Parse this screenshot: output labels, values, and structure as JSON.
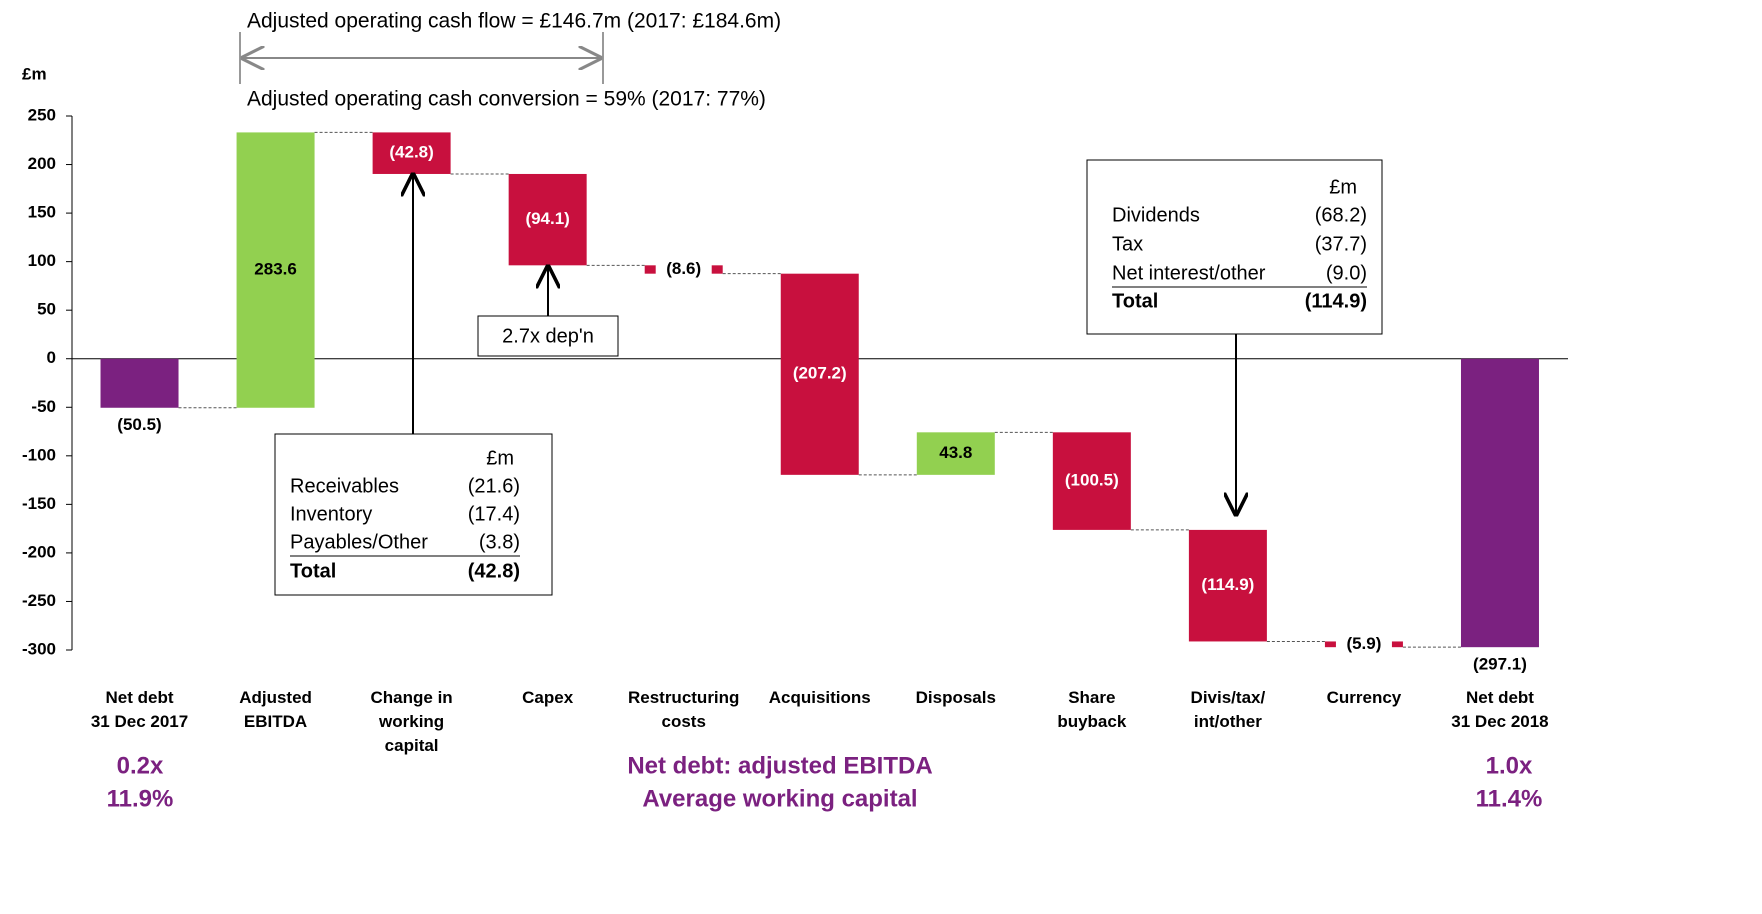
{
  "chart_data": {
    "type": "waterfall",
    "y_axis_label": "£m",
    "categories": [
      "Net debt\n31 Dec 2017",
      "Adjusted\nEBITDA",
      "Change in\nworking\ncapital",
      "Capex",
      "Restructuring\ncosts",
      "Acquisitions",
      "Disposals",
      "Share\nbuyback",
      "Divis/tax/\nint/other",
      "Currency",
      "Net debt\n31 Dec 2018"
    ],
    "values": [
      -50.5,
      283.6,
      -42.8,
      -94.1,
      -8.6,
      -207.2,
      43.8,
      -100.5,
      -114.9,
      -5.9,
      -297.1
    ],
    "value_labels": [
      "(50.5)",
      "283.6",
      "(42.8)",
      "(94.1)",
      "(8.6)",
      "(207.2)",
      "43.8",
      "(100.5)",
      "(114.9)",
      "(5.9)",
      "(297.1)"
    ],
    "colors": [
      "#7b2180",
      "#92d050",
      "#c8103e",
      "#c8103e",
      "#c8103e",
      "#c8103e",
      "#92d050",
      "#c8103e",
      "#c8103e",
      "#c8103e",
      "#7b2180"
    ],
    "totals": [
      10
    ],
    "ylim": [
      -300,
      250
    ],
    "yticks": [
      -300,
      -250,
      -200,
      -150,
      -100,
      -50,
      0,
      50,
      100,
      150,
      200,
      250
    ],
    "annotations": {
      "cash_flow": "Adjusted operating cash flow = £146.7m (2017: £184.6m)",
      "cash_conversion": "Adjusted operating cash conversion = 59% (2017: 77%)",
      "depreciation": "2.7x dep'n",
      "working_capital_table": {
        "unit": "£m",
        "rows": [
          [
            "Receivables",
            "(21.6)"
          ],
          [
            "Inventory",
            "(17.4)"
          ],
          [
            "Payables/Other",
            "(3.8)"
          ],
          [
            "Total",
            "(42.8)"
          ]
        ]
      },
      "divis_table": {
        "unit": "£m",
        "rows": [
          [
            "Dividends",
            "(68.2)"
          ],
          [
            "Tax",
            "(37.7)"
          ],
          [
            "Net interest/other",
            "(9.0)"
          ],
          [
            "Total",
            "(114.9)"
          ]
        ]
      },
      "ratio_start": "0.2x",
      "wc_start": "11.9%",
      "ratio_label": "Net debt: adjusted EBITDA",
      "wc_label": "Average working capital",
      "ratio_end": "1.0x",
      "wc_end": "11.4%"
    }
  }
}
